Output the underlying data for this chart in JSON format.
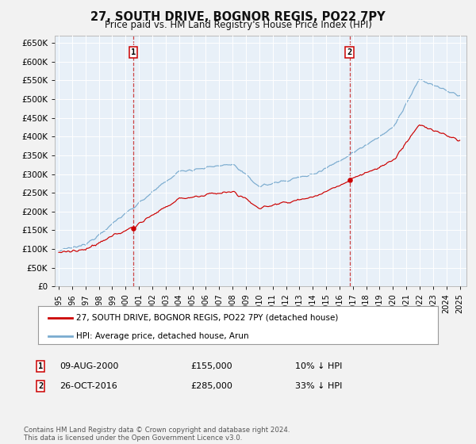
{
  "title": "27, SOUTH DRIVE, BOGNOR REGIS, PO22 7PY",
  "subtitle": "Price paid vs. HM Land Registry's House Price Index (HPI)",
  "legend_label_red": "27, SOUTH DRIVE, BOGNOR REGIS, PO22 7PY (detached house)",
  "legend_label_blue": "HPI: Average price, detached house, Arun",
  "sale1_date": "09-AUG-2000",
  "sale1_price": 155000,
  "sale1_note": "10% ↓ HPI",
  "sale2_date": "26-OCT-2016",
  "sale2_price": 285000,
  "sale2_note": "33% ↓ HPI",
  "footnote": "Contains HM Land Registry data © Crown copyright and database right 2024.\nThis data is licensed under the Open Government Licence v3.0.",
  "ylim": [
    0,
    670000
  ],
  "ytick_vals": [
    0,
    50000,
    100000,
    150000,
    200000,
    250000,
    300000,
    350000,
    400000,
    450000,
    500000,
    550000,
    600000,
    650000
  ],
  "xmin": 1994.7,
  "xmax": 2025.5,
  "fig_bg": "#f2f2f2",
  "plot_bg": "#e8f0f8",
  "grid_color": "#ffffff",
  "red_color": "#cc0000",
  "blue_color": "#7aabcf",
  "vline_color": "#cc4444",
  "marker_color": "#cc0000"
}
